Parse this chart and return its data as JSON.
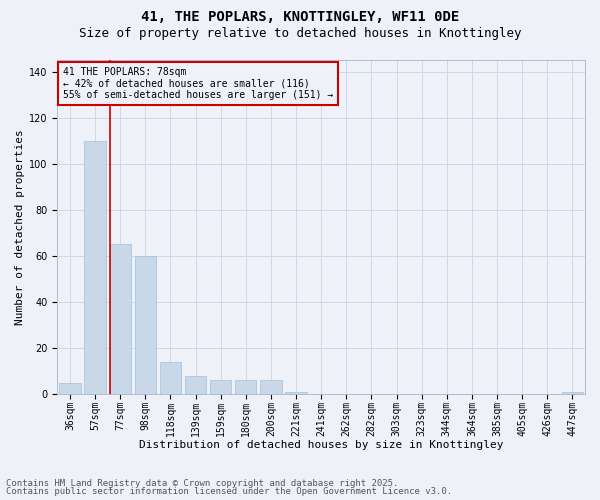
{
  "title1": "41, THE POPLARS, KNOTTINGLEY, WF11 0DE",
  "title2": "Size of property relative to detached houses in Knottingley",
  "xlabel": "Distribution of detached houses by size in Knottingley",
  "ylabel": "Number of detached properties",
  "categories": [
    "36sqm",
    "57sqm",
    "77sqm",
    "98sqm",
    "118sqm",
    "139sqm",
    "159sqm",
    "180sqm",
    "200sqm",
    "221sqm",
    "241sqm",
    "262sqm",
    "282sqm",
    "303sqm",
    "323sqm",
    "344sqm",
    "364sqm",
    "385sqm",
    "405sqm",
    "426sqm",
    "447sqm"
  ],
  "values": [
    5,
    110,
    65,
    60,
    14,
    8,
    6,
    6,
    6,
    1,
    0,
    0,
    0,
    0,
    0,
    0,
    0,
    0,
    0,
    0,
    1
  ],
  "bar_color": "#c8d8e8",
  "bar_edge_color": "#a8bfd0",
  "grid_color": "#d0d8e8",
  "bg_color": "#eef2f8",
  "vline_color": "#cc0000",
  "vline_x_index": 2,
  "annotation_text": "41 THE POPLARS: 78sqm\n← 42% of detached houses are smaller (116)\n55% of semi-detached houses are larger (151) →",
  "annotation_box_color": "#cc0000",
  "footer1": "Contains HM Land Registry data © Crown copyright and database right 2025.",
  "footer2": "Contains public sector information licensed under the Open Government Licence v3.0.",
  "ylim": [
    0,
    145
  ],
  "yticks": [
    0,
    20,
    40,
    60,
    80,
    100,
    120,
    140
  ],
  "title_fontsize": 10,
  "subtitle_fontsize": 9,
  "axis_fontsize": 8,
  "tick_fontsize": 7,
  "annotation_fontsize": 7,
  "footer_fontsize": 6.5
}
